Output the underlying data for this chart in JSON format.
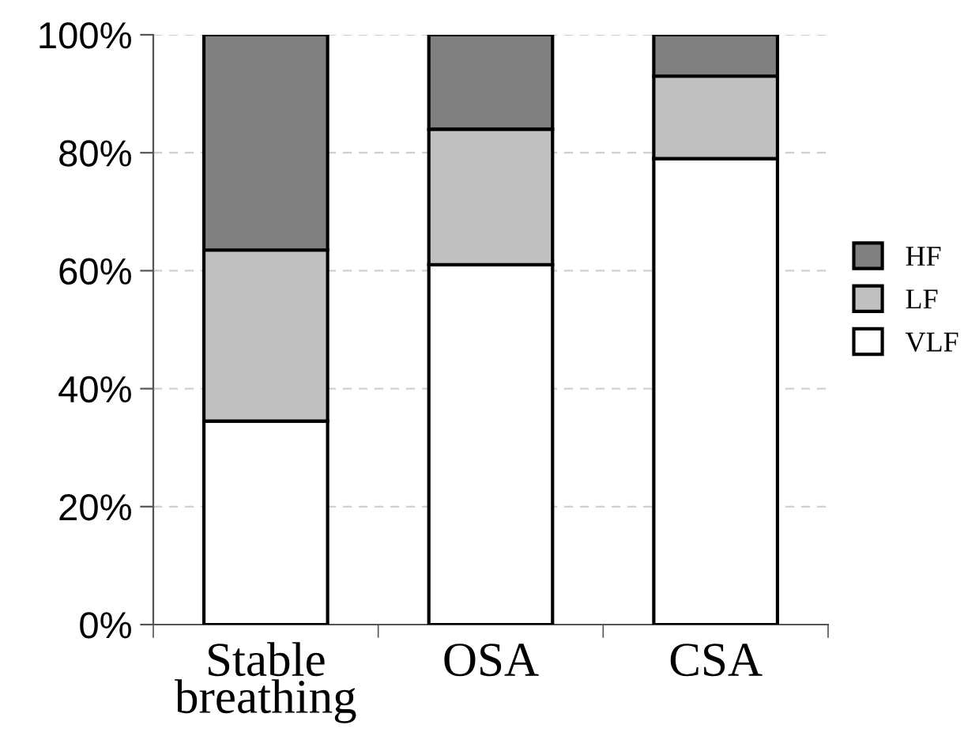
{
  "chart_data": {
    "type": "bar",
    "stacked": true,
    "categories": [
      "Stable\nbreathing",
      "OSA",
      "CSA"
    ],
    "series": [
      {
        "name": "VLF",
        "color": "#ffffff",
        "values": [
          34.5,
          61,
          79
        ]
      },
      {
        "name": "LF",
        "color": "#c0c0c0",
        "values": [
          29,
          23,
          14
        ]
      },
      {
        "name": "HF",
        "color": "#808080",
        "values": [
          36.5,
          16,
          7
        ]
      }
    ],
    "ylim": [
      0,
      100
    ],
    "yticks": [
      {
        "value": 0,
        "label": "0%"
      },
      {
        "value": 20,
        "label": "20%"
      },
      {
        "value": 40,
        "label": "40%"
      },
      {
        "value": 60,
        "label": "60%"
      },
      {
        "value": 80,
        "label": "80%"
      },
      {
        "value": 100,
        "label": "100%"
      }
    ],
    "grid": "y",
    "legend": "right"
  }
}
